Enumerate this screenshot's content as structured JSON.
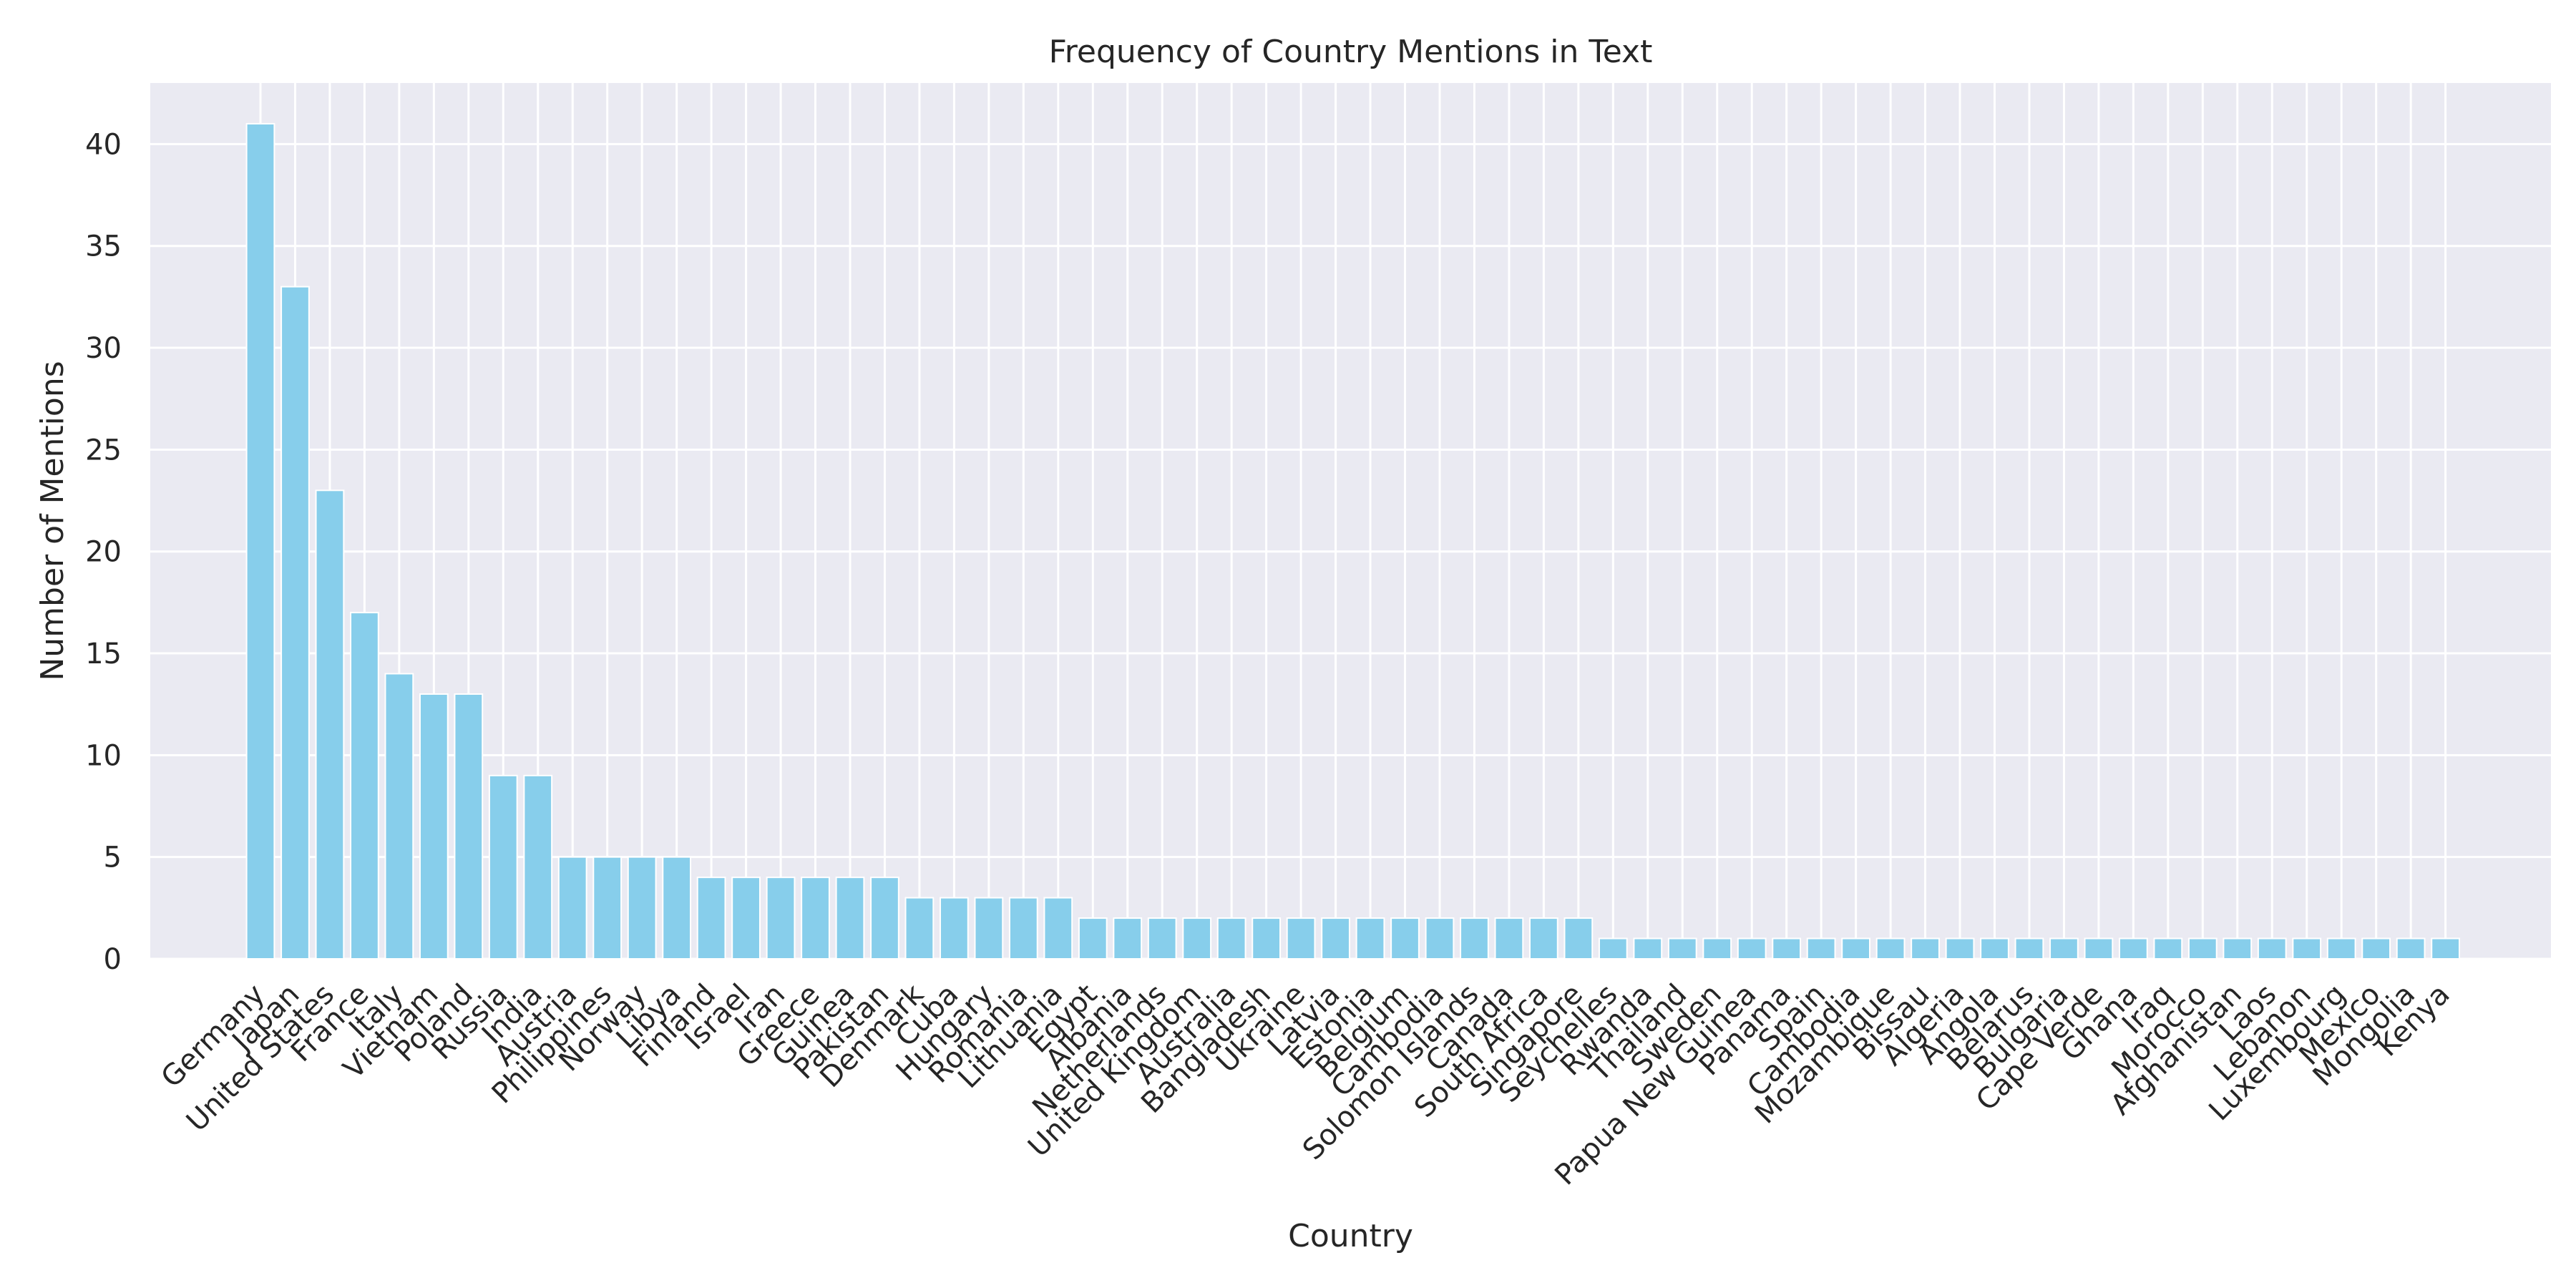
{
  "chart_data": {
    "type": "bar",
    "title": "Frequency of Country Mentions in Text",
    "xlabel": "Country",
    "ylabel": "Number of Mentions",
    "ylim": [
      0,
      43
    ],
    "yticks": [
      0,
      5,
      10,
      15,
      20,
      25,
      30,
      35,
      40
    ],
    "grid": true,
    "legend": "none",
    "colors": {
      "bar": "#87CEEB",
      "plot_bg": "#EAEAF2",
      "grid": "#FFFFFF",
      "text": "#262626"
    },
    "categories": [
      "Germany",
      "Japan",
      "United States",
      "France",
      "Italy",
      "Vietnam",
      "Poland",
      "Russia",
      "India",
      "Austria",
      "Philippines",
      "Norway",
      "Libya",
      "Finland",
      "Israel",
      "Iran",
      "Greece",
      "Guinea",
      "Pakistan",
      "Denmark",
      "Cuba",
      "Hungary",
      "Romania",
      "Lithuania",
      "Egypt",
      "Albania",
      "Netherlands",
      "United Kingdom",
      "Australia",
      "Bangladesh",
      "Ukraine",
      "Latvia",
      "Estonia",
      "Belgium",
      "Cambodia",
      "Solomon Islands",
      "Canada",
      "South Africa",
      "Singapore",
      "Seychelles",
      "Rwanda",
      "Thailand",
      "Sweden",
      "Papua New Guinea",
      "Panama",
      "Spain",
      "Cambodia",
      "Mozambique",
      "Bissau",
      "Algeria",
      "Angola",
      "Belarus",
      "Bulgaria",
      "Cape Verde",
      "Ghana",
      "Iraq",
      "Morocco",
      "Afghanistan",
      "Laos",
      "Lebanon",
      "Luxembourg",
      "Mexico",
      "Mongolia",
      "Kenya"
    ],
    "values": [
      41,
      33,
      23,
      17,
      14,
      13,
      13,
      9,
      9,
      5,
      5,
      5,
      5,
      4,
      4,
      4,
      4,
      4,
      4,
      3,
      3,
      3,
      3,
      3,
      2,
      2,
      2,
      2,
      2,
      2,
      2,
      2,
      2,
      2,
      2,
      2,
      2,
      2,
      2,
      1,
      1,
      1,
      1,
      1,
      1,
      1,
      1,
      1,
      1,
      1,
      1,
      1,
      1,
      1,
      1,
      1,
      1,
      1,
      1,
      1,
      1,
      1,
      1,
      1
    ]
  }
}
